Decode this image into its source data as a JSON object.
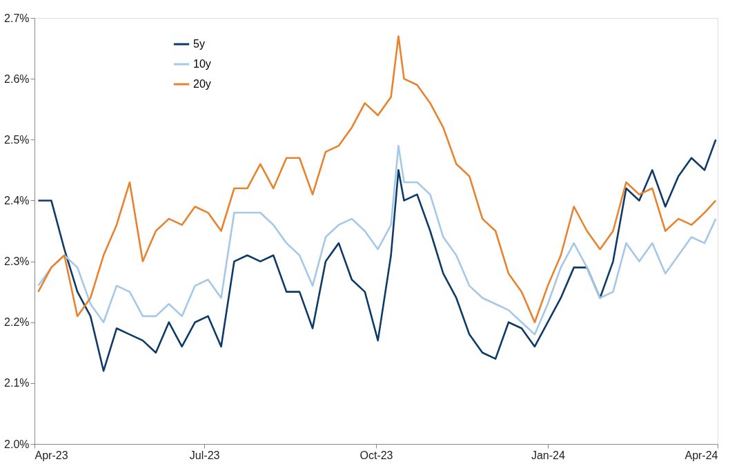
{
  "chart_data": {
    "type": "line",
    "x": [
      "2023-04-03",
      "2023-04-10",
      "2023-04-17",
      "2023-04-24",
      "2023-05-01",
      "2023-05-08",
      "2023-05-15",
      "2023-05-22",
      "2023-05-29",
      "2023-06-05",
      "2023-06-12",
      "2023-06-19",
      "2023-06-26",
      "2023-07-03",
      "2023-07-10",
      "2023-07-17",
      "2023-07-24",
      "2023-07-31",
      "2023-08-07",
      "2023-08-14",
      "2023-08-21",
      "2023-08-28",
      "2023-09-04",
      "2023-09-11",
      "2023-09-18",
      "2023-09-25",
      "2023-10-02",
      "2023-10-09",
      "2023-10-13",
      "2023-10-16",
      "2023-10-23",
      "2023-10-30",
      "2023-11-06",
      "2023-11-13",
      "2023-11-20",
      "2023-11-27",
      "2023-12-04",
      "2023-12-11",
      "2023-12-18",
      "2023-12-25",
      "2024-01-01",
      "2024-01-08",
      "2024-01-15",
      "2024-01-22",
      "2024-01-29",
      "2024-02-05",
      "2024-02-12",
      "2024-02-19",
      "2024-02-26",
      "2024-03-04",
      "2024-03-11",
      "2024-03-18",
      "2024-03-25",
      "2024-03-31"
    ],
    "series": [
      {
        "name": "5y",
        "color": "#0d3a66",
        "values": [
          2.4,
          2.4,
          2.32,
          2.25,
          2.21,
          2.12,
          2.19,
          2.18,
          2.17,
          2.15,
          2.2,
          2.16,
          2.2,
          2.21,
          2.16,
          2.3,
          2.31,
          2.3,
          2.31,
          2.25,
          2.25,
          2.19,
          2.3,
          2.33,
          2.27,
          2.25,
          2.17,
          2.31,
          2.45,
          2.4,
          2.41,
          2.35,
          2.28,
          2.24,
          2.18,
          2.15,
          2.14,
          2.2,
          2.19,
          2.16,
          2.2,
          2.24,
          2.29,
          2.29,
          2.24,
          2.3,
          2.42,
          2.4,
          2.45,
          2.39,
          2.44,
          2.47,
          2.45,
          2.5
        ]
      },
      {
        "name": "10y",
        "color": "#a6c8e8",
        "values": [
          2.26,
          2.29,
          2.31,
          2.29,
          2.23,
          2.2,
          2.26,
          2.25,
          2.21,
          2.21,
          2.23,
          2.21,
          2.26,
          2.27,
          2.24,
          2.38,
          2.38,
          2.38,
          2.36,
          2.33,
          2.31,
          2.26,
          2.34,
          2.36,
          2.37,
          2.35,
          2.32,
          2.36,
          2.49,
          2.43,
          2.43,
          2.41,
          2.34,
          2.31,
          2.26,
          2.24,
          2.23,
          2.22,
          2.2,
          2.18,
          2.23,
          2.29,
          2.33,
          2.29,
          2.24,
          2.25,
          2.33,
          2.3,
          2.33,
          2.28,
          2.31,
          2.34,
          2.33,
          2.37
        ]
      },
      {
        "name": "20y",
        "color": "#e8822c",
        "values": [
          2.25,
          2.29,
          2.31,
          2.21,
          2.24,
          2.31,
          2.36,
          2.43,
          2.3,
          2.35,
          2.37,
          2.36,
          2.39,
          2.38,
          2.35,
          2.42,
          2.42,
          2.46,
          2.42,
          2.47,
          2.47,
          2.41,
          2.48,
          2.49,
          2.52,
          2.56,
          2.54,
          2.57,
          2.67,
          2.6,
          2.59,
          2.56,
          2.52,
          2.46,
          2.44,
          2.37,
          2.35,
          2.28,
          2.25,
          2.2,
          2.26,
          2.31,
          2.39,
          2.35,
          2.32,
          2.35,
          2.43,
          2.41,
          2.42,
          2.35,
          2.37,
          2.36,
          2.38,
          2.4
        ]
      }
    ],
    "xlim": [
      "2023-04-01",
      "2024-04-01"
    ],
    "xticks": [
      {
        "value": "2023-04-01",
        "label": "Apr-23"
      },
      {
        "value": "2023-07-01",
        "label": "Jul-23"
      },
      {
        "value": "2023-10-01",
        "label": "Oct-23"
      },
      {
        "value": "2024-01-01",
        "label": "Jan-24"
      },
      {
        "value": "2024-04-01",
        "label": "Apr-24"
      }
    ],
    "ylim": [
      2.0,
      2.7
    ],
    "yticks": [
      {
        "value": 2.0,
        "label": "2.0%"
      },
      {
        "value": 2.1,
        "label": "2.1%"
      },
      {
        "value": 2.2,
        "label": "2.2%"
      },
      {
        "value": 2.3,
        "label": "2.3%"
      },
      {
        "value": 2.4,
        "label": "2.4%"
      },
      {
        "value": 2.5,
        "label": "2.5%"
      },
      {
        "value": 2.6,
        "label": "2.6%"
      },
      {
        "value": 2.7,
        "label": "2.7%"
      }
    ],
    "grid": false,
    "legend": "top left",
    "marker": "none",
    "line_style": "solid"
  }
}
